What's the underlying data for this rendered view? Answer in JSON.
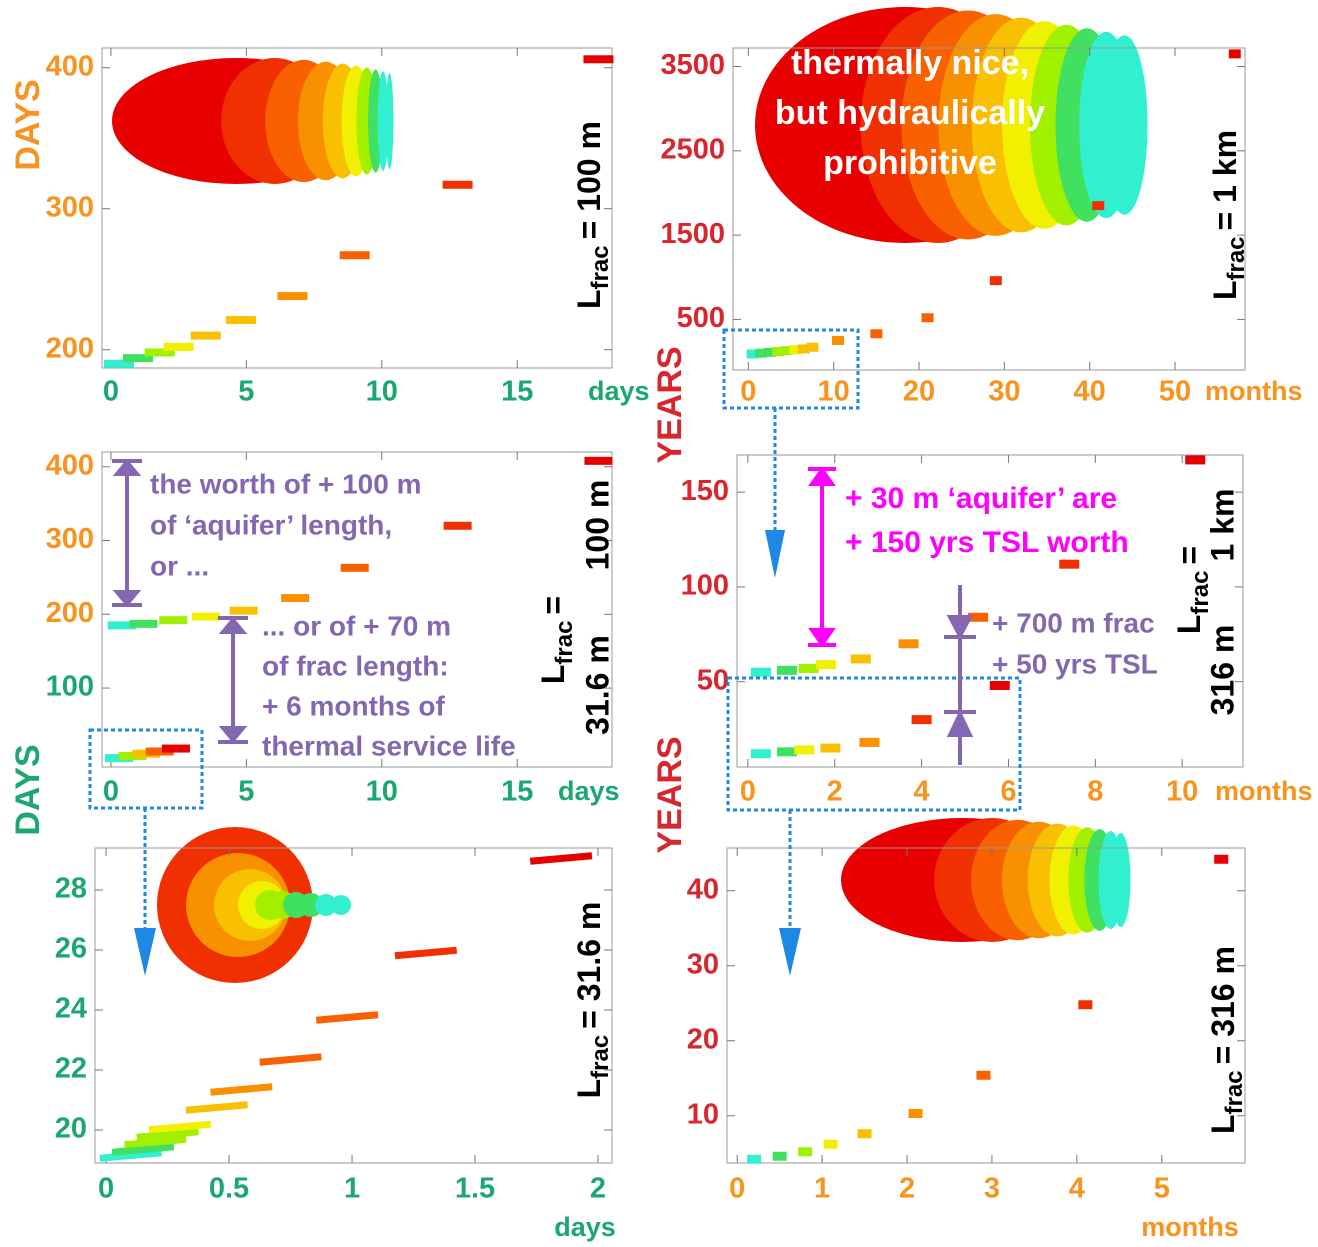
{
  "chart_data": [
    {
      "type": "scatter",
      "xlim": [
        -0.33,
        18.5
      ],
      "ylim": [
        187,
        414
      ],
      "xticks": [
        0,
        5,
        10,
        15
      ],
      "yticks": [
        200,
        300,
        400
      ],
      "ylabel": "DAYS",
      "ylabel_color": "#f7931e",
      "xtick_color": "#1ba672",
      "ytick_color": "#f7931e",
      "x_unit": "days",
      "x_unit_color": "#1ba672",
      "lfrac": {
        "symbol": "L",
        "subscript": "frac",
        "value": "= 100 m"
      },
      "colormap": [
        "#30f0d0",
        "#40e060",
        "#a0f000",
        "#f0f000",
        "#f8c000",
        "#f89000",
        "#f86000",
        "#f03000",
        "#e80000"
      ],
      "series": [
        {
          "x": [
            0.3,
            1,
            1.8,
            2.5,
            3.5,
            4.8,
            6.7,
            9,
            12.8,
            18
          ],
          "values": [
            190,
            194,
            198,
            202,
            210,
            221,
            238,
            267,
            317,
            406
          ]
        }
      ]
    },
    {
      "type": "scatter",
      "xlim": [
        -1.8,
        58.2
      ],
      "ylim": [
        -100,
        3720
      ],
      "xticks": [
        0,
        10,
        20,
        30,
        40,
        50
      ],
      "yticks": [
        500,
        1500,
        2500,
        3500
      ],
      "ylabel": "YEARS",
      "ylabel_color": "#d7262e",
      "xtick_color": "#f7931e",
      "ytick_color": "#d7262e",
      "x_unit": "months",
      "x_unit_color": "#f7931e",
      "lfrac": {
        "symbol": "L",
        "subscript": "frac",
        "value": "= 1 km"
      },
      "annotations": [
        {
          "color": "#ffffff",
          "lines": [
            "thermally nice,",
            "but hydraulically",
            "prohibitive"
          ]
        }
      ],
      "colormap": [
        "#30f0d0",
        "#40e060",
        "#a0f000",
        "#f0f000",
        "#f8c000",
        "#f89000",
        "#f86000",
        "#f03000",
        "#e80000"
      ],
      "series": [
        {
          "x": [
            0.5,
            1.5,
            2.5,
            3.5,
            4.5,
            5.5,
            6.5,
            7.5,
            10.5,
            15,
            21,
            29,
            41,
            57
          ],
          "values": [
            90,
            100,
            110,
            120,
            130,
            140,
            150,
            170,
            250,
            330,
            520,
            960,
            1850,
            3650
          ]
        }
      ]
    },
    {
      "type": "scatter",
      "xlim": [
        -0.33,
        18.5
      ],
      "ylim": [
        -7,
        420
      ],
      "xticks": [
        0,
        5,
        10,
        15
      ],
      "yticks": [
        100,
        200,
        300,
        400
      ],
      "xtick_color": "#1ba672",
      "ytick_color": [
        "#1ba672",
        "#f7931e",
        "#f7931e",
        "#f7931e"
      ],
      "x_unit": "days",
      "x_unit_color": "#1ba672",
      "lfrac": {
        "symbol": "L",
        "subscript": "frac",
        "value": "="
      },
      "lfrac_values": [
        "100 m",
        "31.6 m"
      ],
      "annotations": [
        {
          "color": "#8467b0",
          "lines": [
            "the worth of + 100 m",
            "of ‘aquifer’ length,",
            "or ..."
          ]
        },
        {
          "color": "#8467b0",
          "lines": [
            "... or of  + 70 m",
            "of frac length:",
            "+ 6 months of",
            "thermal service life"
          ]
        }
      ],
      "colormap": [
        "#30f0d0",
        "#40e060",
        "#a0f000",
        "#f0f000",
        "#f8c000",
        "#f89000",
        "#f86000",
        "#f03000",
        "#e80000"
      ],
      "series": [
        {
          "x": [
            0.4,
            1.2,
            2.3,
            3.5,
            4.9,
            6.8,
            9,
            12.8,
            18
          ],
          "values": [
            185,
            187,
            192,
            197,
            205,
            222,
            263,
            320,
            408
          ]
        },
        {
          "x": [
            0.3,
            0.8,
            1.3,
            1.8,
            2.4
          ],
          "values": [
            5,
            8,
            11,
            14,
            18
          ]
        }
      ]
    },
    {
      "type": "scatter",
      "xlim": [
        -0.25,
        11.4
      ],
      "ylim": [
        5,
        169.6
      ],
      "xticks": [
        0,
        2,
        4,
        6,
        8,
        10
      ],
      "yticks": [
        50,
        100,
        150
      ],
      "xtick_color": "#f7931e",
      "ytick_color": "#d7262e",
      "x_unit": "months",
      "x_unit_color": "#f7931e",
      "lfrac": {
        "symbol": "L",
        "subscript": "frac",
        "value": "="
      },
      "lfrac_values": [
        "1 km",
        "316 m"
      ],
      "annotations": [
        {
          "color": "#ff00ff",
          "lines": [
            "+ 30 m ‘aquifer’ are",
            "+ 150 yrs TSL worth"
          ]
        },
        {
          "color": "#8467b0",
          "lines": [
            "+ 700 m frac",
            "+ 50 yrs TSL"
          ]
        }
      ],
      "colormap": [
        "#30f0d0",
        "#40e060",
        "#a0f000",
        "#f0f000",
        "#f8c000",
        "#f89000",
        "#f86000",
        "#f03000",
        "#e80000"
      ],
      "series": [
        {
          "x": [
            0.3,
            0.9,
            1.4,
            1.8,
            2.6,
            3.7,
            5.3,
            7.4,
            10.3
          ],
          "values": [
            55,
            56,
            57,
            59,
            62,
            70,
            84,
            112,
            167
          ]
        },
        {
          "x": [
            0.3,
            0.9,
            1.3,
            1.9,
            2.8,
            4,
            5.8
          ],
          "values": [
            12,
            13,
            14,
            15,
            18,
            30,
            48
          ]
        }
      ]
    },
    {
      "type": "scatter",
      "xlim": [
        -0.045,
        2.057
      ],
      "ylim": [
        18.9,
        29.4
      ],
      "xticks": [
        0,
        0.5,
        1,
        1.5,
        2
      ],
      "yticks": [
        20,
        22,
        24,
        26,
        28
      ],
      "ylabel": "DAYS",
      "ylabel_color": "#1ba672",
      "xtick_color": "#1ba672",
      "ytick_color": "#1ba672",
      "x_unit": "days",
      "x_unit_color": "#1ba672",
      "lfrac": {
        "symbol": "L",
        "subscript": "frac",
        "value": "= 31.6 m"
      },
      "colormap": [
        "#30f0d0",
        "#40e060",
        "#a0f000",
        "#f0f000",
        "#f8c000",
        "#f89000",
        "#f86000",
        "#f03000",
        "#e80000"
      ],
      "series": [
        {
          "x": [
            0.1,
            0.15,
            0.2,
            0.25,
            0.3,
            0.45,
            0.55,
            0.75,
            0.98,
            1.3,
            1.85
          ],
          "values": [
            19.15,
            19.35,
            19.6,
            19.85,
            20.1,
            20.75,
            21.35,
            22.35,
            23.75,
            25.9,
            29.05
          ]
        }
      ]
    },
    {
      "type": "scatter",
      "xlim": [
        -0.12,
        5.98
      ],
      "ylim": [
        3.7,
        45.7
      ],
      "xticks": [
        0,
        1,
        2,
        3,
        4,
        5
      ],
      "yticks": [
        10,
        20,
        30,
        40
      ],
      "ylabel": "YEARS",
      "ylabel_color": "#d7262e",
      "xtick_color": "#f7931e",
      "ytick_color": "#d7262e",
      "x_unit": "months",
      "x_unit_color": "#f7931e",
      "lfrac": {
        "symbol": "L",
        "subscript": "frac",
        "value": "= 316 m"
      },
      "colormap": [
        "#30f0d0",
        "#40e060",
        "#a0f000",
        "#f0f000",
        "#f8c000",
        "#f89000",
        "#f86000",
        "#f03000",
        "#e80000"
      ],
      "series": [
        {
          "x": [
            0.2,
            0.5,
            0.8,
            1.1,
            1.5,
            2.1,
            2.9,
            4.1,
            5.7
          ],
          "values": [
            4.2,
            4.6,
            5.2,
            6.2,
            7.6,
            10.3,
            15.4,
            24.8,
            44.2
          ]
        }
      ]
    }
  ]
}
